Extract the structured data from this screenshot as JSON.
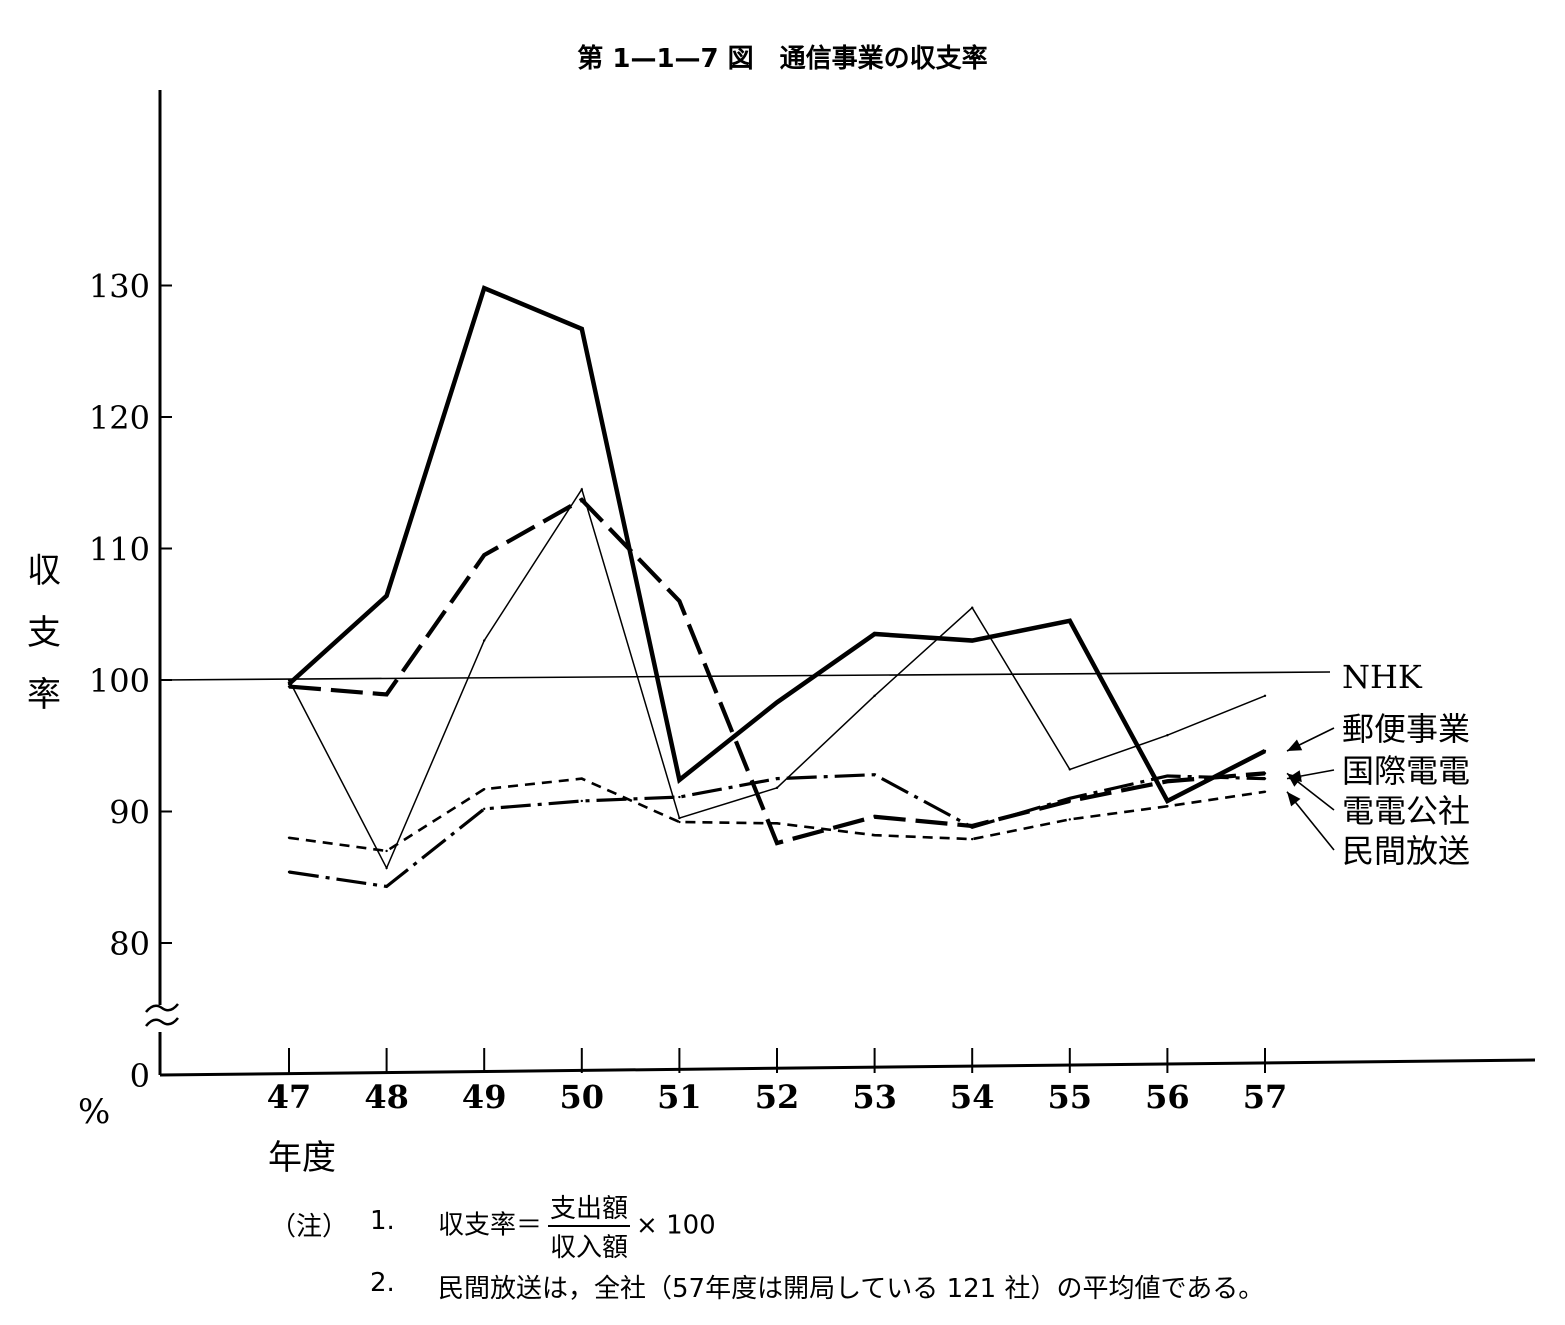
{
  "chart_data": {
    "type": "line",
    "title": "第 1—1—7 図　通信事業の収支率",
    "ylabel": "収支率",
    "yunit": "%",
    "xlabel": "年度",
    "categories": [
      "47",
      "48",
      "49",
      "50",
      "51",
      "52",
      "53",
      "54",
      "55",
      "56",
      "57"
    ],
    "ylim": [
      0,
      140
    ],
    "yticks": [
      0,
      80,
      90,
      100,
      110,
      120,
      130
    ],
    "axis_break": "between 0 and 80",
    "grid": false,
    "reference_line": 100,
    "legend_placement": "right, with arrows",
    "series": [
      {
        "name": "NHK",
        "style": "thin-solid",
        "values": [
          100.0,
          85.7,
          103.0,
          114.5,
          89.5,
          91.8,
          98.8,
          105.5,
          93.2,
          95.8,
          98.8
        ]
      },
      {
        "name": "郵便事業",
        "style": "thick-solid",
        "values": [
          99.7,
          106.4,
          129.8,
          126.7,
          92.4,
          98.3,
          103.5,
          103.0,
          104.5,
          90.8,
          94.6
        ]
      },
      {
        "name": "国際電電",
        "style": "dash-dot",
        "values": [
          85.4,
          84.3,
          90.2,
          90.8,
          91.1,
          92.5,
          92.8,
          88.8,
          91.0,
          92.7,
          92.5
        ]
      },
      {
        "name": "電電公社",
        "style": "long-dash",
        "values": [
          99.5,
          98.9,
          109.5,
          113.7,
          106.0,
          87.6,
          89.6,
          88.9,
          90.8,
          92.3,
          92.9
        ]
      },
      {
        "name": "民間放送",
        "style": "short-dash",
        "values": [
          88.0,
          87.0,
          91.7,
          92.5,
          89.2,
          89.1,
          88.2,
          87.9,
          89.4,
          90.4,
          91.5
        ]
      }
    ]
  },
  "notes": {
    "label": "（注）",
    "n1_index": "1.",
    "n1_prefix": "収支率＝",
    "n1_numerator": "支出額",
    "n1_denominator": "収入額",
    "n1_suffix": "× 100",
    "n2_index": "2.",
    "n2_text": "民間放送は，全社（57年度は開局している 121 社）の平均値である。"
  }
}
